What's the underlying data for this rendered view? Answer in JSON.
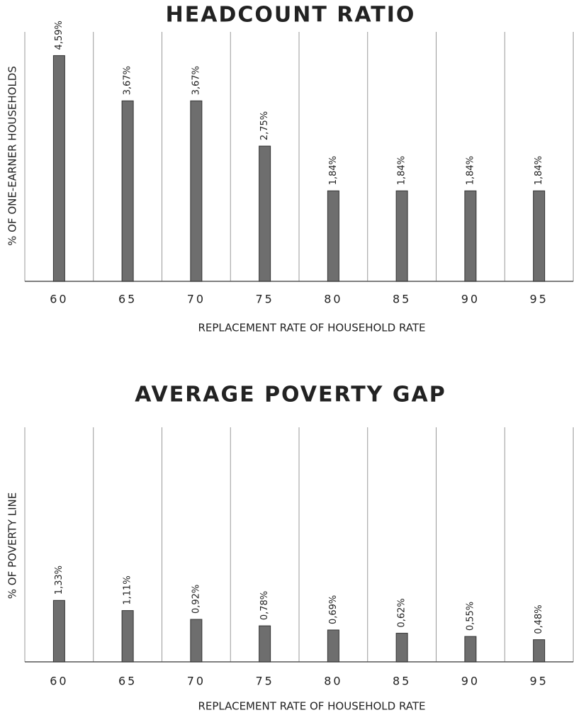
{
  "chart_data": [
    {
      "type": "bar",
      "title": "HEADCOUNT RATIO",
      "x_label": "REPLACEMENT RATE OF HOUSEHOLD RATE",
      "y_label": "% OF ONE-EARNER HOUSEHOLDS",
      "categories": [
        "60",
        "65",
        "70",
        "75",
        "80",
        "85",
        "90",
        "95"
      ],
      "values": [
        4.59,
        3.67,
        3.67,
        2.75,
        1.84,
        1.84,
        1.84,
        1.84
      ],
      "value_labels": [
        "4,59%",
        "3,67%",
        "3,67%",
        "2,75%",
        "1,84%",
        "1,84%",
        "1,84%",
        "1,84%"
      ],
      "color": "#6e6e6e",
      "ylim": [
        0,
        5
      ],
      "grid": true
    },
    {
      "type": "bar",
      "title": "AVERAGE POVERTY GAP",
      "x_label": "REPLACEMENT RATE OF HOUSEHOLD RATE",
      "y_label": "% OF POVERTY LINE",
      "categories": [
        "60",
        "65",
        "70",
        "75",
        "80",
        "85",
        "90",
        "95"
      ],
      "values": [
        1.33,
        1.11,
        0.92,
        0.78,
        0.69,
        0.62,
        0.55,
        0.48
      ],
      "value_labels": [
        "1,33%",
        "1,11%",
        "0,92%",
        "0,78%",
        "0,69%",
        "0,62%",
        "0,55%",
        "0,48%"
      ],
      "color": "#6e6e6e",
      "ylim": [
        0,
        5
      ],
      "grid": true
    }
  ]
}
